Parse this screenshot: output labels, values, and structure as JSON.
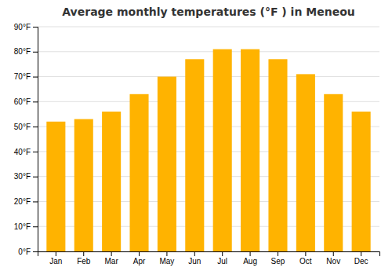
{
  "chart_data": {
    "type": "bar",
    "title": "Average monthly temperatures (°F ) in Meneou",
    "categories": [
      "Jan",
      "Feb",
      "Mar",
      "Apr",
      "May",
      "Jun",
      "Jul",
      "Aug",
      "Sep",
      "Oct",
      "Nov",
      "Dec"
    ],
    "values": [
      52,
      53,
      56,
      63,
      70,
      77,
      81,
      81,
      77,
      71,
      63,
      56
    ],
    "color": "#FFB300",
    "ylim": [
      0,
      90
    ],
    "yticks": [
      {
        "value": 0,
        "label": "0°F"
      },
      {
        "value": 10,
        "label": "10°F"
      },
      {
        "value": 20,
        "label": "20°F"
      },
      {
        "value": 30,
        "label": "30°F"
      },
      {
        "value": 40,
        "label": "40°F"
      },
      {
        "value": 50,
        "label": "50°F"
      },
      {
        "value": 60,
        "label": "60°F"
      },
      {
        "value": 70,
        "label": "70°F"
      },
      {
        "value": 80,
        "label": "80°F"
      },
      {
        "value": 90,
        "label": "90°F"
      }
    ],
    "grid": true
  }
}
